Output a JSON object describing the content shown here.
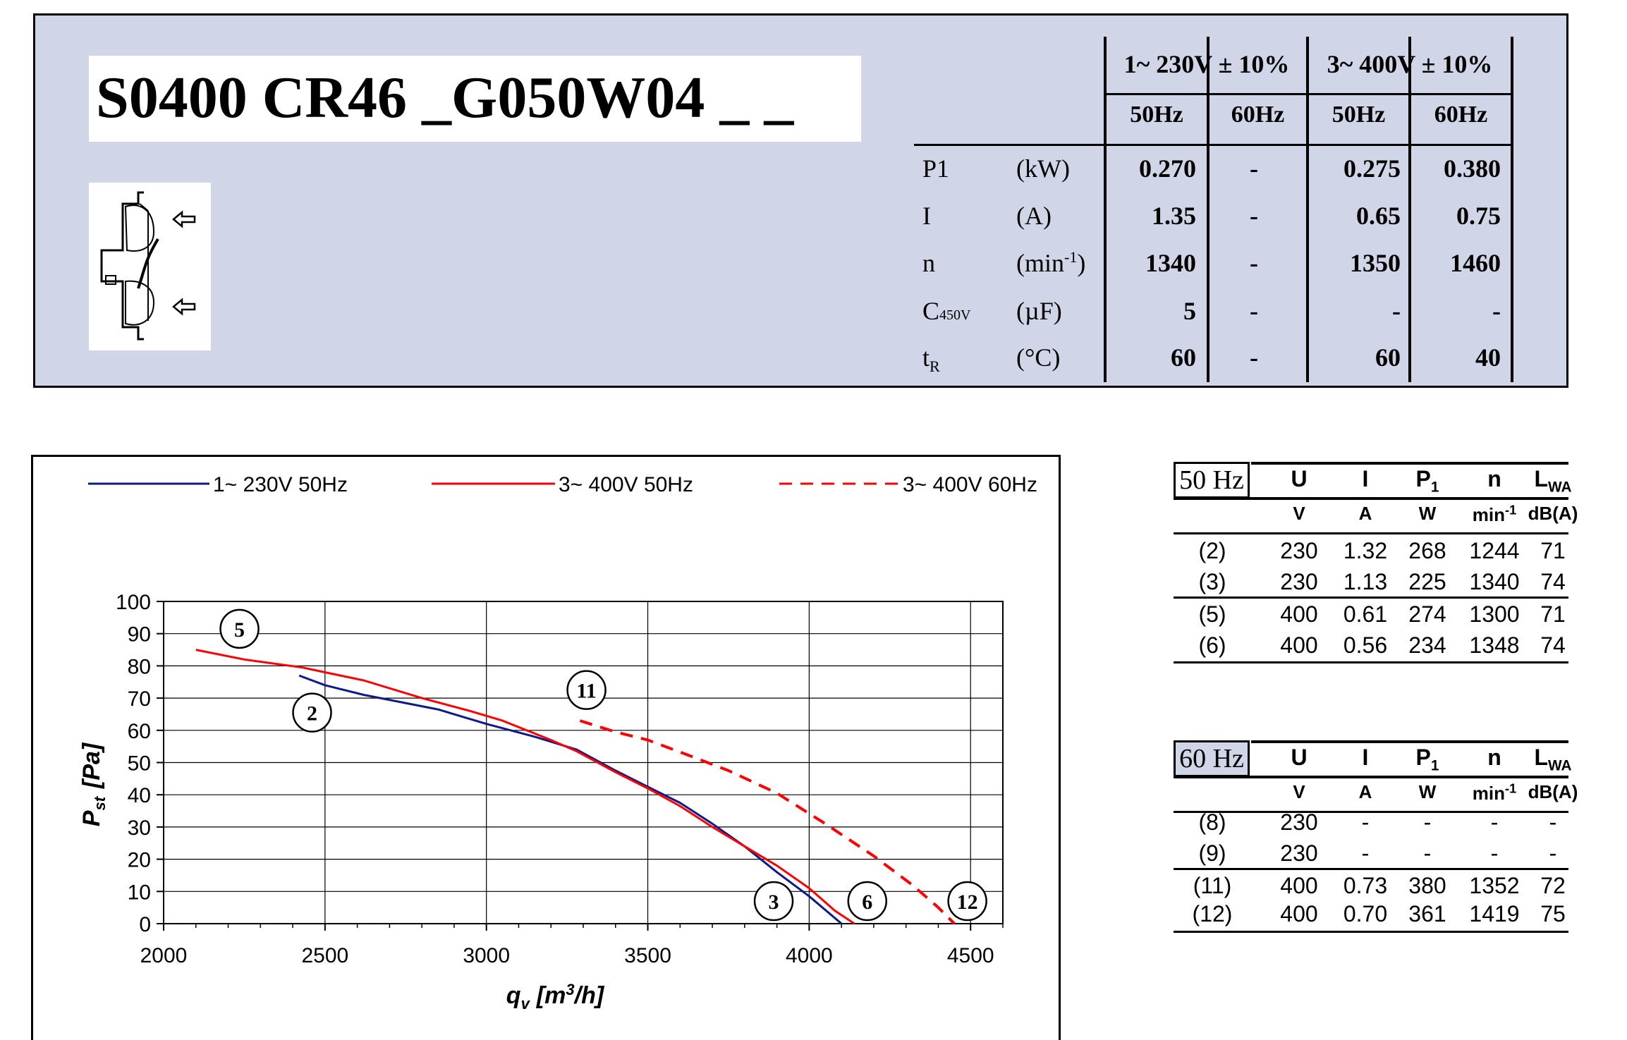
{
  "header": {
    "title": "S0400 CR46 _G050W04 _ _",
    "voltage_groups": [
      "1~ 230V ± 10%",
      "3~ 400V ± 10%"
    ],
    "freqs": [
      "50Hz",
      "60Hz",
      "50Hz",
      "60Hz"
    ],
    "rows": [
      {
        "param": "P1",
        "unit": "(kW)",
        "values": [
          "0.270",
          "-",
          "0.275",
          "0.380"
        ]
      },
      {
        "param": "I",
        "unit": "(A)",
        "values": [
          "1.35",
          "-",
          "0.65",
          "0.75"
        ]
      },
      {
        "param": "n",
        "param_sub": "",
        "unit": "(min",
        "unit_sup": "-1",
        "unit_end": ")",
        "values": [
          "1340",
          "-",
          "1350",
          "1460"
        ]
      },
      {
        "param": "C",
        "param_sub": "450V",
        "unit": "(µF)",
        "values": [
          "5",
          "-",
          "-",
          "-"
        ]
      },
      {
        "param": "t",
        "param_sub": "R",
        "unit": "(°C)",
        "values": [
          "60",
          "-",
          "60",
          "40"
        ]
      }
    ]
  },
  "chart_data": {
    "type": "line",
    "xlabel": "q",
    "xlabel_sub": "v",
    "xlabel_unit": "[m",
    "xlabel_unit_sup": "3",
    "xlabel_unit_end": "/h]",
    "ylabel": "P",
    "ylabel_sub": "st",
    "ylabel_unit": "[Pa]",
    "xlim": [
      2000,
      4600
    ],
    "ylim": [
      0,
      100
    ],
    "xticks": [
      2000,
      2500,
      3000,
      3500,
      4000,
      4500
    ],
    "yticks": [
      0,
      10,
      20,
      30,
      40,
      50,
      60,
      70,
      80,
      90,
      100
    ],
    "grid": true,
    "legend": "top",
    "series": [
      {
        "name": "1~ 230V 50Hz",
        "color": "#0c1a8a",
        "style": "solid",
        "points": [
          [
            2420,
            77
          ],
          [
            2500,
            74
          ],
          [
            2620,
            71
          ],
          [
            2850,
            66.5
          ],
          [
            3000,
            62
          ],
          [
            3150,
            58
          ],
          [
            3280,
            54
          ],
          [
            3400,
            47.5
          ],
          [
            3500,
            42.5
          ],
          [
            3600,
            37.5
          ],
          [
            3700,
            31
          ],
          [
            3800,
            24
          ],
          [
            3900,
            16
          ],
          [
            4000,
            8.5
          ],
          [
            4100,
            0
          ]
        ]
      },
      {
        "name": "3~ 400V 50Hz",
        "color": "#ff0000",
        "style": "solid",
        "points": [
          [
            2100,
            85
          ],
          [
            2250,
            82
          ],
          [
            2430,
            79.5
          ],
          [
            2500,
            78
          ],
          [
            2620,
            75.5
          ],
          [
            2800,
            70
          ],
          [
            2950,
            66
          ],
          [
            3050,
            63
          ],
          [
            3200,
            57
          ],
          [
            3280,
            53.5
          ],
          [
            3400,
            47
          ],
          [
            3500,
            42
          ],
          [
            3600,
            36.5
          ],
          [
            3700,
            30
          ],
          [
            3800,
            24
          ],
          [
            3900,
            18
          ],
          [
            4000,
            11
          ],
          [
            4080,
            4
          ],
          [
            4140,
            0
          ]
        ]
      },
      {
        "name": "3~ 400V 60Hz",
        "color": "#ff0000",
        "style": "dashed",
        "points": [
          [
            3290,
            63
          ],
          [
            3400,
            59.5
          ],
          [
            3500,
            57
          ],
          [
            3620,
            52.5
          ],
          [
            3750,
            47.5
          ],
          [
            3900,
            40.5
          ],
          [
            4050,
            31
          ],
          [
            4200,
            21
          ],
          [
            4320,
            12
          ],
          [
            4400,
            5
          ],
          [
            4450,
            0
          ]
        ]
      }
    ],
    "annotations": [
      {
        "label": "5",
        "x": 2235,
        "y": 91.5
      },
      {
        "label": "2",
        "x": 2460,
        "y": 65.5
      },
      {
        "label": "11",
        "x": 3310,
        "y": 72.5
      },
      {
        "label": "3",
        "x": 3890,
        "y": 7
      },
      {
        "label": "6",
        "x": 4180,
        "y": 7
      },
      {
        "label": "12",
        "x": 4490,
        "y": 7
      }
    ]
  },
  "op50": {
    "freq": "50 Hz",
    "headers": [
      {
        "t": "U"
      },
      {
        "t": "I"
      },
      {
        "t": "P",
        "sub": "1"
      },
      {
        "t": "n"
      },
      {
        "t": "L",
        "sub": "WA"
      }
    ],
    "units": [
      {
        "t": "V"
      },
      {
        "t": "A"
      },
      {
        "t": "W"
      },
      {
        "t": "min",
        "sup": "-1"
      },
      {
        "t": "dB(A)"
      }
    ],
    "rows": [
      [
        "(2)",
        "230",
        "1.32",
        "268",
        "1244",
        "71"
      ],
      [
        "(3)",
        "230",
        "1.13",
        "225",
        "1340",
        "74"
      ],
      [
        "(5)",
        "400",
        "0.61",
        "274",
        "1300",
        "71"
      ],
      [
        "(6)",
        "400",
        "0.56",
        "234",
        "1348",
        "74"
      ]
    ]
  },
  "op60": {
    "freq": "60 Hz",
    "headers": [
      {
        "t": "U"
      },
      {
        "t": "I"
      },
      {
        "t": "P",
        "sub": "1"
      },
      {
        "t": "n"
      },
      {
        "t": "L",
        "sub": "WA"
      }
    ],
    "units": [
      {
        "t": "V"
      },
      {
        "t": "A"
      },
      {
        "t": "W"
      },
      {
        "t": "min",
        "sup": "-1"
      },
      {
        "t": "dB(A)"
      }
    ],
    "rows": [
      [
        "(8)",
        "230",
        "-",
        "-",
        "-",
        "-"
      ],
      [
        "(9)",
        "230",
        "-",
        "-",
        "-",
        "-"
      ],
      [
        "(11)",
        "400",
        "0.73",
        "380",
        "1352",
        "72"
      ],
      [
        "(12)",
        "400",
        "0.70",
        "361",
        "1419",
        "75"
      ]
    ]
  }
}
